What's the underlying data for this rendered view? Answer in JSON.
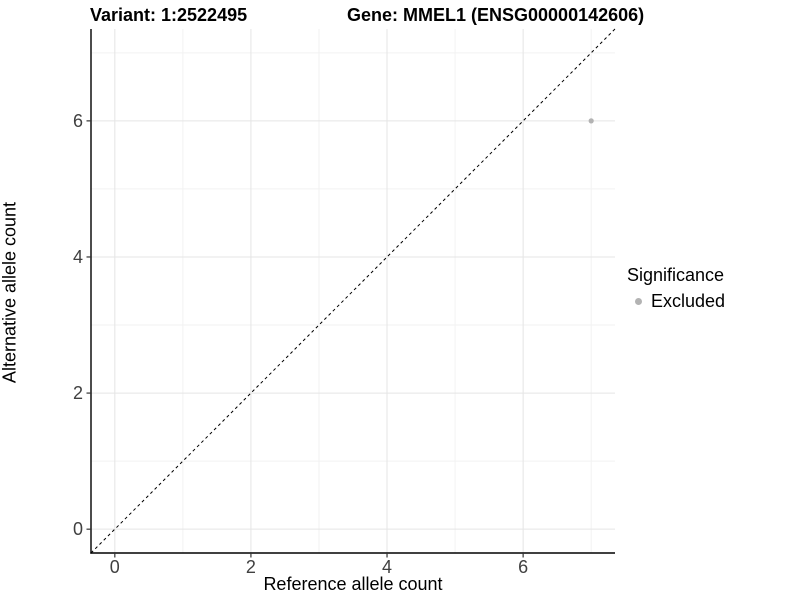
{
  "titles": {
    "variant": "Variant: 1:2522495",
    "gene": "Gene: MMEL1 (ENSG00000142606)"
  },
  "chart_data": {
    "type": "scatter",
    "xlabel": "Reference allele count",
    "ylabel": "Alternative allele count",
    "xlim": [
      -0.35,
      7.35
    ],
    "ylim": [
      -0.35,
      7.35
    ],
    "x_ticks": [
      0,
      2,
      4,
      6
    ],
    "y_ticks": [
      0,
      2,
      4,
      6
    ],
    "x_minor_ticks": [
      1,
      3,
      5,
      7
    ],
    "y_minor_ticks": [
      1,
      3,
      5,
      7
    ],
    "grid": "major+minor",
    "points": [
      {
        "x": 7,
        "y": 6,
        "significance": "Excluded"
      }
    ],
    "reference_line": {
      "slope": 1,
      "intercept": 0,
      "style": "dashed"
    },
    "legend": {
      "title": "Significance",
      "position": "right",
      "items": [
        {
          "label": "Excluded",
          "color": "#b3b3b3"
        }
      ]
    },
    "colors": {
      "point": "#b3b3b3",
      "grid_major": "#e5e5e5",
      "grid_minor": "#f2f2f2",
      "axis_line": "#000000",
      "tick": "#333333",
      "tick_label": "#404040",
      "reference_line": "#000000"
    }
  }
}
